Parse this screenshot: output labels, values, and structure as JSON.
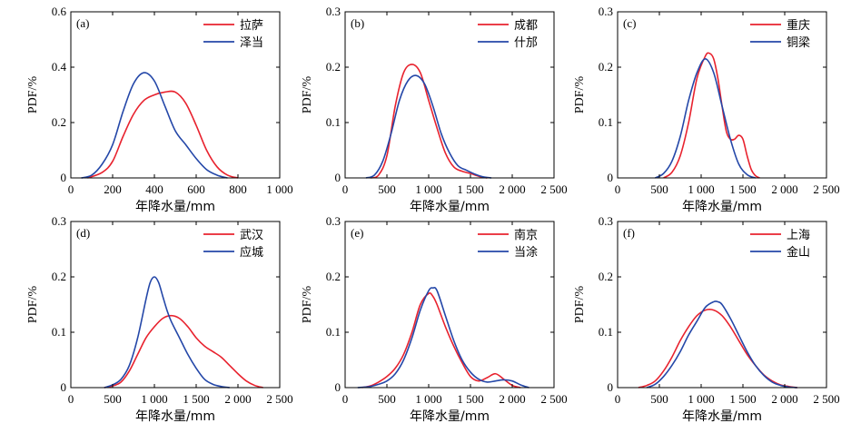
{
  "colors": {
    "series1": "#e8222e",
    "series2": "#2447a8",
    "axis": "#000000"
  },
  "chart_data": [
    {
      "panel_label": "(a)",
      "type": "line",
      "xlabel": "年降水量/mm",
      "ylabel": "PDF/%",
      "xlim": [
        0,
        1000
      ],
      "ylim": [
        0,
        0.6
      ],
      "xticks": [
        0,
        200,
        400,
        600,
        800,
        1000
      ],
      "xtick_labels": [
        "0",
        "200",
        "400",
        "600",
        "800",
        "1 000"
      ],
      "yticks": [
        0,
        0.2,
        0.4,
        0.6
      ],
      "ytick_labels": [
        "0",
        "0.2",
        "0.4",
        "0.6"
      ],
      "legend": "top-right",
      "series": [
        {
          "name": "拉萨",
          "x": [
            80,
            150,
            200,
            250,
            300,
            350,
            400,
            450,
            500,
            550,
            600,
            650,
            700,
            750,
            800
          ],
          "y": [
            0,
            0.02,
            0.06,
            0.15,
            0.23,
            0.28,
            0.3,
            0.31,
            0.31,
            0.27,
            0.19,
            0.1,
            0.04,
            0.01,
            0
          ]
        },
        {
          "name": "泽当",
          "x": [
            50,
            100,
            150,
            200,
            250,
            300,
            350,
            400,
            450,
            500,
            550,
            600,
            650,
            700,
            750
          ],
          "y": [
            0,
            0.01,
            0.05,
            0.12,
            0.24,
            0.34,
            0.38,
            0.35,
            0.26,
            0.17,
            0.12,
            0.07,
            0.03,
            0.01,
            0
          ]
        }
      ]
    },
    {
      "panel_label": "(b)",
      "type": "line",
      "xlabel": "年降水量/mm",
      "ylabel": "PDF/%",
      "xlim": [
        0,
        2500
      ],
      "ylim": [
        0,
        0.3
      ],
      "xticks": [
        0,
        500,
        1000,
        1500,
        2000,
        2500
      ],
      "xtick_labels": [
        "0",
        "500",
        "1 000",
        "1 500",
        "2 000",
        "2 500"
      ],
      "yticks": [
        0,
        0.1,
        0.2,
        0.3
      ],
      "ytick_labels": [
        "0",
        "0.1",
        "0.2",
        "0.3"
      ],
      "legend": "top-right",
      "series": [
        {
          "name": "成都",
          "x": [
            300,
            400,
            500,
            600,
            700,
            800,
            900,
            1000,
            1100,
            1200,
            1300,
            1400,
            1500,
            1600,
            1700
          ],
          "y": [
            0,
            0.005,
            0.04,
            0.13,
            0.19,
            0.205,
            0.19,
            0.14,
            0.09,
            0.045,
            0.02,
            0.012,
            0.008,
            0.003,
            0
          ]
        },
        {
          "name": "什邡",
          "x": [
            250,
            350,
            450,
            550,
            650,
            750,
            850,
            950,
            1050,
            1150,
            1250,
            1350,
            1450,
            1550,
            1650,
            1750
          ],
          "y": [
            0,
            0.005,
            0.03,
            0.08,
            0.14,
            0.175,
            0.185,
            0.17,
            0.13,
            0.08,
            0.045,
            0.022,
            0.014,
            0.007,
            0.002,
            0
          ]
        }
      ]
    },
    {
      "panel_label": "(c)",
      "type": "line",
      "xlabel": "年降水量/mm",
      "ylabel": "PDF/%",
      "xlim": [
        0,
        2500
      ],
      "ylim": [
        0,
        0.3
      ],
      "xticks": [
        0,
        500,
        1000,
        1500,
        2000,
        2500
      ],
      "xtick_labels": [
        "0",
        "500",
        "1 000",
        "1 500",
        "2 000",
        "2 500"
      ],
      "yticks": [
        0,
        0.1,
        0.2,
        0.3
      ],
      "ytick_labels": [
        "0",
        "0.1",
        "0.2",
        "0.3"
      ],
      "legend": "top-right",
      "series": [
        {
          "name": "重庆",
          "x": [
            550,
            650,
            750,
            850,
            950,
            1050,
            1100,
            1150,
            1200,
            1250,
            1300,
            1350,
            1400,
            1450,
            1500,
            1550,
            1600,
            1650,
            1700
          ],
          "y": [
            0,
            0.01,
            0.04,
            0.1,
            0.18,
            0.22,
            0.225,
            0.215,
            0.18,
            0.13,
            0.085,
            0.07,
            0.07,
            0.077,
            0.07,
            0.04,
            0.015,
            0.004,
            0
          ]
        },
        {
          "name": "铜梁",
          "x": [
            450,
            550,
            650,
            750,
            850,
            950,
            1050,
            1150,
            1250,
            1350,
            1450,
            1550,
            1650
          ],
          "y": [
            0,
            0.008,
            0.03,
            0.075,
            0.14,
            0.19,
            0.215,
            0.19,
            0.13,
            0.07,
            0.025,
            0.006,
            0
          ]
        }
      ]
    },
    {
      "panel_label": "(d)",
      "type": "line",
      "xlabel": "年降水量/mm",
      "ylabel": "PDF/%",
      "xlim": [
        0,
        2500
      ],
      "ylim": [
        0,
        0.3
      ],
      "xticks": [
        0,
        500,
        1000,
        1500,
        2000,
        2500
      ],
      "xtick_labels": [
        "0",
        "500",
        "1 000",
        "1 500",
        "2 000",
        "2 500"
      ],
      "yticks": [
        0,
        0.1,
        0.2,
        0.3
      ],
      "ytick_labels": [
        "0",
        "0.1",
        "0.2",
        "0.3"
      ],
      "legend": "top-right",
      "series": [
        {
          "name": "武汉",
          "x": [
            400,
            500,
            600,
            700,
            800,
            900,
            1000,
            1100,
            1200,
            1300,
            1400,
            1500,
            1600,
            1700,
            1800,
            1900,
            2000,
            2100,
            2200,
            2300
          ],
          "y": [
            0,
            0.003,
            0.01,
            0.03,
            0.06,
            0.09,
            0.11,
            0.125,
            0.13,
            0.125,
            0.11,
            0.09,
            0.075,
            0.065,
            0.055,
            0.04,
            0.025,
            0.012,
            0.004,
            0
          ]
        },
        {
          "name": "应城",
          "x": [
            400,
            500,
            600,
            700,
            800,
            900,
            950,
            1000,
            1050,
            1100,
            1150,
            1200,
            1300,
            1400,
            1500,
            1600,
            1700,
            1800,
            1900
          ],
          "y": [
            0,
            0.005,
            0.015,
            0.04,
            0.09,
            0.16,
            0.19,
            0.2,
            0.19,
            0.165,
            0.14,
            0.12,
            0.09,
            0.06,
            0.035,
            0.015,
            0.006,
            0.002,
            0
          ]
        }
      ]
    },
    {
      "panel_label": "(e)",
      "type": "line",
      "xlabel": "年降水量/mm",
      "ylabel": "PDF/%",
      "xlim": [
        0,
        2500
      ],
      "ylim": [
        0,
        0.3
      ],
      "xticks": [
        0,
        500,
        1000,
        1500,
        2000,
        2500
      ],
      "xtick_labels": [
        "0",
        "500",
        "1 000",
        "1 500",
        "2 000",
        "2 500"
      ],
      "yticks": [
        0,
        0.1,
        0.2,
        0.3
      ],
      "ytick_labels": [
        "0",
        "0.1",
        "0.2",
        "0.3"
      ],
      "legend": "top-right",
      "series": [
        {
          "name": "南京",
          "x": [
            200,
            300,
            400,
            500,
            600,
            700,
            800,
            900,
            1000,
            1050,
            1100,
            1200,
            1300,
            1400,
            1500,
            1600,
            1700,
            1800,
            1900,
            2000,
            2100
          ],
          "y": [
            0,
            0.003,
            0.01,
            0.02,
            0.035,
            0.06,
            0.1,
            0.15,
            0.17,
            0.165,
            0.15,
            0.11,
            0.075,
            0.045,
            0.02,
            0.012,
            0.018,
            0.025,
            0.015,
            0.004,
            0
          ]
        },
        {
          "name": "当涂",
          "x": [
            150,
            300,
            400,
            500,
            600,
            700,
            800,
            900,
            1000,
            1050,
            1100,
            1200,
            1300,
            1400,
            1500,
            1600,
            1700,
            1800,
            1900,
            2000,
            2100,
            2200
          ],
          "y": [
            0,
            0.002,
            0.006,
            0.012,
            0.025,
            0.05,
            0.09,
            0.14,
            0.175,
            0.18,
            0.175,
            0.13,
            0.085,
            0.05,
            0.028,
            0.015,
            0.01,
            0.012,
            0.014,
            0.012,
            0.005,
            0
          ]
        }
      ]
    },
    {
      "panel_label": "(f)",
      "type": "line",
      "xlabel": "年降水量/mm",
      "ylabel": "PDF/%",
      "xlim": [
        0,
        2500
      ],
      "ylim": [
        0,
        0.3
      ],
      "xticks": [
        0,
        500,
        1000,
        1500,
        2000,
        2500
      ],
      "xtick_labels": [
        "0",
        "500",
        "1 000",
        "1 500",
        "2 000",
        "2 500"
      ],
      "yticks": [
        0,
        0.1,
        0.2,
        0.3
      ],
      "ytick_labels": [
        "0",
        "0.1",
        "0.2",
        "0.3"
      ],
      "legend": "top-right",
      "series": [
        {
          "name": "上海",
          "x": [
            250,
            350,
            450,
            550,
            650,
            750,
            850,
            950,
            1050,
            1150,
            1250,
            1350,
            1450,
            1550,
            1650,
            1750,
            1850,
            1950,
            2050,
            2150
          ],
          "y": [
            0,
            0.004,
            0.012,
            0.03,
            0.055,
            0.085,
            0.11,
            0.13,
            0.14,
            0.14,
            0.13,
            0.11,
            0.085,
            0.06,
            0.04,
            0.023,
            0.012,
            0.005,
            0.002,
            0
          ]
        },
        {
          "name": "金山",
          "x": [
            350,
            450,
            550,
            650,
            750,
            850,
            950,
            1050,
            1150,
            1200,
            1250,
            1350,
            1450,
            1550,
            1650,
            1750,
            1850,
            1950,
            2050,
            2150
          ],
          "y": [
            0,
            0.006,
            0.02,
            0.04,
            0.065,
            0.095,
            0.12,
            0.145,
            0.155,
            0.155,
            0.15,
            0.125,
            0.095,
            0.065,
            0.04,
            0.022,
            0.01,
            0.004,
            0.001,
            0
          ]
        }
      ]
    }
  ]
}
